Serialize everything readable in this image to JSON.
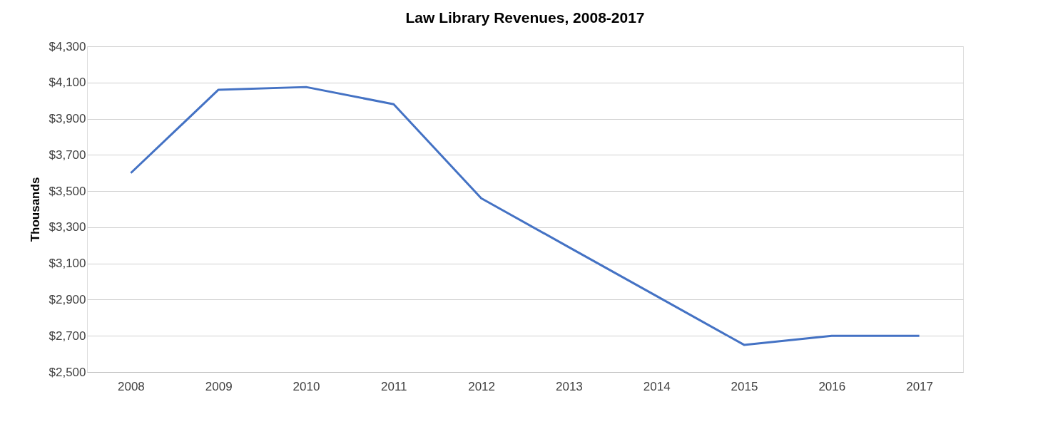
{
  "chart_data": {
    "type": "line",
    "title": "Law Library Revenues, 2008-2017",
    "ylabel": "Thousands",
    "categories": [
      "2008",
      "2009",
      "2010",
      "2011",
      "2012",
      "2013",
      "2014",
      "2015",
      "2016",
      "2017"
    ],
    "series": [
      {
        "color": "#4472c4",
        "values": [
          3600,
          4060,
          4075,
          3980,
          3460,
          3190,
          2920,
          2650,
          2700,
          2700
        ]
      }
    ],
    "ylim": [
      2500,
      4300
    ],
    "yticks": [
      {
        "value": 2500,
        "label": "$2,500"
      },
      {
        "value": 2700,
        "label": "$2,700"
      },
      {
        "value": 2900,
        "label": "$2,900"
      },
      {
        "value": 3100,
        "label": "$3,100"
      },
      {
        "value": 3300,
        "label": "$3,300"
      },
      {
        "value": 3500,
        "label": "$3,500"
      },
      {
        "value": 3700,
        "label": "$3,700"
      },
      {
        "value": 3900,
        "label": "$3,900"
      },
      {
        "value": 4100,
        "label": "$4,100"
      },
      {
        "value": 4300,
        "label": "$4,300"
      }
    ],
    "grid": "y",
    "marker": "none",
    "line_style": "solid"
  }
}
